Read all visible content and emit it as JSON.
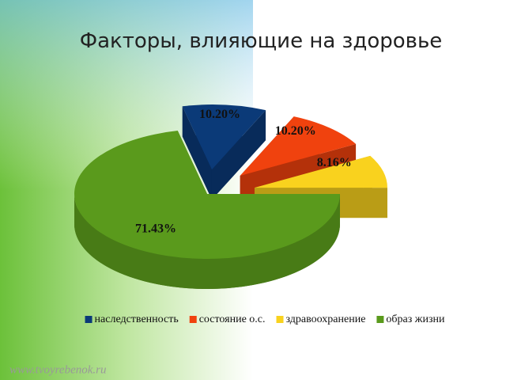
{
  "chart_data": {
    "type": "pie3d",
    "title": "Факторы, влияющие на здоровье",
    "categories": [
      "наследственность",
      "состояние о.с.",
      "здравоохранение",
      "образ жизни"
    ],
    "values": [
      10.2,
      10.2,
      8.16,
      71.43
    ],
    "value_labels": [
      "10.20%",
      "10.20%",
      "8.16%",
      "71.43%"
    ],
    "colors": [
      "#0b3a78",
      "#f0420e",
      "#f9d21e",
      "#5a9a1c"
    ],
    "legend": "bottom"
  },
  "watermark": "www.tvoyrebenok.ru"
}
